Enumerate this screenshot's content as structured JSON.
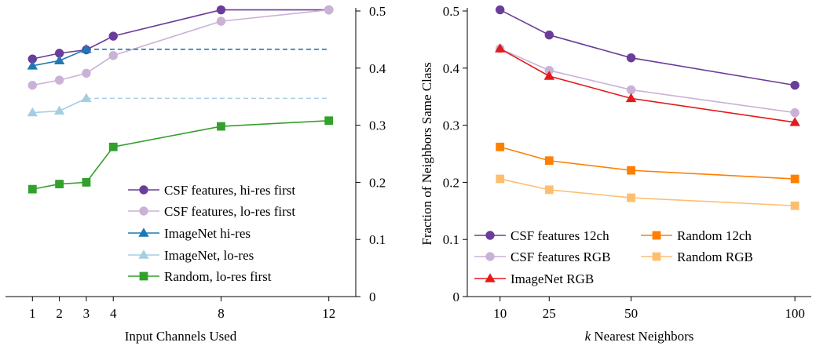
{
  "chart_data": [
    {
      "type": "line",
      "xlabel": "Input Channels Used",
      "ylabel": "",
      "xlim": [
        0,
        13
      ],
      "ylim": [
        0,
        0.5
      ],
      "x_ticks": [
        1,
        2,
        3,
        4,
        8,
        12
      ],
      "x_tick_labels": [
        "1",
        "2",
        "3",
        "4",
        "8",
        "12"
      ],
      "y_ticks": [
        0,
        0.1,
        0.2,
        0.3,
        0.4,
        0.5
      ],
      "y_tick_labels": [
        "0",
        "0.1",
        "0.2",
        "0.3",
        "0.4",
        "0.5"
      ],
      "y_axis_side": "right",
      "legend_position": "bottom-right",
      "series": [
        {
          "name": "CSF features, hi-res first",
          "color": "#6a3d9a",
          "marker": "circle",
          "x": [
            1,
            2,
            3,
            4,
            8,
            12
          ],
          "values": [
            0.416,
            0.426,
            0.432,
            0.456,
            0.502,
            0.502
          ]
        },
        {
          "name": "CSF features, lo-res first",
          "color": "#cab2d6",
          "marker": "circle",
          "x": [
            1,
            2,
            3,
            4,
            8,
            12
          ],
          "values": [
            0.37,
            0.379,
            0.391,
            0.422,
            0.482,
            0.502
          ]
        },
        {
          "name": "ImageNet hi-res",
          "color": "#1f78b4",
          "marker": "triangle",
          "x": [
            1,
            2,
            3
          ],
          "values": [
            0.404,
            0.413,
            0.433
          ],
          "extension": {
            "x": [
              3,
              12
            ],
            "values": [
              0.433,
              0.433
            ],
            "style": "dashed"
          }
        },
        {
          "name": "ImageNet, lo-res",
          "color": "#a6cee3",
          "marker": "triangle",
          "x": [
            1,
            2,
            3
          ],
          "values": [
            0.322,
            0.325,
            0.347
          ],
          "extension": {
            "x": [
              3,
              12
            ],
            "values": [
              0.347,
              0.347
            ],
            "style": "dashed"
          }
        },
        {
          "name": "Random, lo-res first",
          "color": "#33a02c",
          "marker": "square",
          "x": [
            1,
            2,
            3,
            4,
            8,
            12
          ],
          "values": [
            0.188,
            0.197,
            0.2,
            0.262,
            0.298,
            0.308
          ]
        }
      ]
    },
    {
      "type": "line",
      "xlabel": "k Nearest Neighbors",
      "xlabel_italic": "k",
      "xlabel_rest": " Nearest Neighbors",
      "ylabel": "Fraction of Neighbors Same Class",
      "xlim": [
        0,
        105
      ],
      "ylim": [
        0,
        0.5
      ],
      "x_ticks": [
        10,
        25,
        50,
        100
      ],
      "x_tick_labels": [
        "10",
        "25",
        "50",
        "100"
      ],
      "y_ticks": [
        0,
        0.1,
        0.2,
        0.3,
        0.4,
        0.5
      ],
      "y_tick_labels": [
        "0",
        "0.1",
        "0.2",
        "0.3",
        "0.4",
        "0.5"
      ],
      "legend_position": "bottom-left",
      "series": [
        {
          "name": "CSF features 12ch",
          "color": "#6a3d9a",
          "marker": "circle",
          "x": [
            10,
            25,
            50,
            100
          ],
          "values": [
            0.502,
            0.458,
            0.418,
            0.37
          ]
        },
        {
          "name": "CSF features RGB",
          "color": "#cab2d6",
          "marker": "circle",
          "x": [
            10,
            25,
            50,
            100
          ],
          "values": [
            0.434,
            0.396,
            0.362,
            0.322
          ]
        },
        {
          "name": "ImageNet RGB",
          "color": "#e31a1c",
          "marker": "triangle",
          "x": [
            10,
            25,
            50,
            100
          ],
          "values": [
            0.434,
            0.386,
            0.347,
            0.305
          ]
        },
        {
          "name": "Random 12ch",
          "color": "#ff7f00",
          "marker": "square",
          "x": [
            10,
            25,
            50,
            100
          ],
          "values": [
            0.262,
            0.238,
            0.221,
            0.206
          ]
        },
        {
          "name": "Random RGB",
          "color": "#fdbf6f",
          "marker": "square",
          "x": [
            10,
            25,
            50,
            100
          ],
          "values": [
            0.206,
            0.187,
            0.173,
            0.159
          ]
        }
      ]
    }
  ]
}
